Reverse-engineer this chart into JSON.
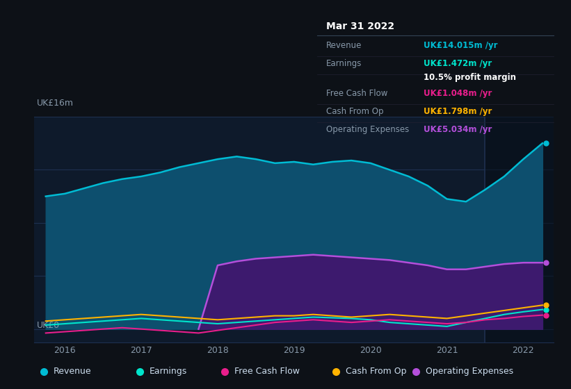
{
  "bg_color": "#0d1117",
  "plot_bg_color": "#0e1a2b",
  "grid_color": "#1e3050",
  "ylabel_text": "UK£16m",
  "y0_text": "UK£0",
  "x_ticks": [
    2016,
    2017,
    2018,
    2019,
    2020,
    2021,
    2022
  ],
  "series": {
    "Revenue": {
      "color": "#00bcd4",
      "fill_color": "#0d4f6e",
      "x": [
        2015.75,
        2016.0,
        2016.25,
        2016.5,
        2016.75,
        2017.0,
        2017.25,
        2017.5,
        2017.75,
        2018.0,
        2018.25,
        2018.5,
        2018.75,
        2019.0,
        2019.25,
        2019.5,
        2019.75,
        2020.0,
        2020.25,
        2020.5,
        2020.75,
        2021.0,
        2021.25,
        2021.5,
        2021.75,
        2022.0,
        2022.25
      ],
      "y": [
        10.0,
        10.2,
        10.6,
        11.0,
        11.3,
        11.5,
        11.8,
        12.2,
        12.5,
        12.8,
        13.0,
        12.8,
        12.5,
        12.6,
        12.4,
        12.6,
        12.7,
        12.5,
        12.0,
        11.5,
        10.8,
        9.8,
        9.6,
        10.5,
        11.5,
        12.8,
        14.0
      ]
    },
    "OperatingExpenses": {
      "color": "#b44fdb",
      "fill_color": "#3d1a6e",
      "x": [
        2017.75,
        2018.0,
        2018.25,
        2018.5,
        2018.75,
        2019.0,
        2019.25,
        2019.5,
        2019.75,
        2020.0,
        2020.25,
        2020.5,
        2020.75,
        2021.0,
        2021.25,
        2021.5,
        2021.75,
        2022.0,
        2022.25
      ],
      "y": [
        0.0,
        4.8,
        5.1,
        5.3,
        5.4,
        5.5,
        5.6,
        5.5,
        5.4,
        5.3,
        5.2,
        5.0,
        4.8,
        4.5,
        4.5,
        4.7,
        4.9,
        5.0,
        5.0
      ]
    },
    "Earnings": {
      "color": "#00e5cc",
      "x": [
        2015.75,
        2016.0,
        2016.25,
        2016.5,
        2016.75,
        2017.0,
        2017.25,
        2017.5,
        2017.75,
        2018.0,
        2018.25,
        2018.5,
        2018.75,
        2019.0,
        2019.25,
        2019.5,
        2019.75,
        2020.0,
        2020.25,
        2020.5,
        2020.75,
        2021.0,
        2021.25,
        2021.5,
        2021.75,
        2022.0,
        2022.25
      ],
      "y": [
        0.3,
        0.4,
        0.5,
        0.6,
        0.7,
        0.8,
        0.7,
        0.6,
        0.5,
        0.4,
        0.5,
        0.6,
        0.7,
        0.8,
        0.9,
        0.85,
        0.8,
        0.7,
        0.5,
        0.4,
        0.3,
        0.2,
        0.5,
        0.8,
        1.1,
        1.3,
        1.47
      ]
    },
    "FreeCashFlow": {
      "color": "#e91e8c",
      "x": [
        2015.75,
        2016.0,
        2016.25,
        2016.5,
        2016.75,
        2017.0,
        2017.25,
        2017.5,
        2017.75,
        2018.0,
        2018.25,
        2018.5,
        2018.75,
        2019.0,
        2019.25,
        2019.5,
        2019.75,
        2020.0,
        2020.25,
        2020.5,
        2020.75,
        2021.0,
        2021.25,
        2021.5,
        2021.75,
        2022.0,
        2022.25
      ],
      "y": [
        -0.3,
        -0.2,
        -0.1,
        0.0,
        0.1,
        0.0,
        -0.1,
        -0.2,
        -0.3,
        -0.1,
        0.1,
        0.3,
        0.5,
        0.6,
        0.7,
        0.6,
        0.5,
        0.6,
        0.7,
        0.6,
        0.5,
        0.4,
        0.5,
        0.7,
        0.8,
        0.95,
        1.05
      ]
    },
    "CashFromOp": {
      "color": "#ffb300",
      "x": [
        2015.75,
        2016.0,
        2016.25,
        2016.5,
        2016.75,
        2017.0,
        2017.25,
        2017.5,
        2017.75,
        2018.0,
        2018.25,
        2018.5,
        2018.75,
        2019.0,
        2019.25,
        2019.5,
        2019.75,
        2020.0,
        2020.25,
        2020.5,
        2020.75,
        2021.0,
        2021.25,
        2021.5,
        2021.75,
        2022.0,
        2022.25
      ],
      "y": [
        0.6,
        0.7,
        0.8,
        0.9,
        1.0,
        1.1,
        1.0,
        0.9,
        0.8,
        0.7,
        0.8,
        0.9,
        1.0,
        1.0,
        1.1,
        1.0,
        0.9,
        1.0,
        1.1,
        1.0,
        0.9,
        0.8,
        1.0,
        1.2,
        1.4,
        1.6,
        1.8
      ]
    }
  },
  "tooltip": {
    "title": "Mar 31 2022",
    "rows": [
      {
        "label": "Revenue",
        "value": "UK£14.015m /yr",
        "value_color": "#00bcd4",
        "label_color": "#8899aa"
      },
      {
        "label": "Earnings",
        "value": "UK£1.472m /yr",
        "value_color": "#00e5cc",
        "label_color": "#8899aa"
      },
      {
        "label": "",
        "value": "10.5% profit margin",
        "value_color": "#ffffff",
        "label_color": "#8899aa"
      },
      {
        "label": "Free Cash Flow",
        "value": "UK£1.048m /yr",
        "value_color": "#e91e8c",
        "label_color": "#8899aa"
      },
      {
        "label": "Cash From Op",
        "value": "UK£1.798m /yr",
        "value_color": "#ffb300",
        "label_color": "#8899aa"
      },
      {
        "label": "Operating Expenses",
        "value": "UK£5.034m /yr",
        "value_color": "#b44fdb",
        "label_color": "#8899aa"
      }
    ]
  },
  "legend": [
    {
      "label": "Revenue",
      "color": "#00bcd4"
    },
    {
      "label": "Earnings",
      "color": "#00e5cc"
    },
    {
      "label": "Free Cash Flow",
      "color": "#e91e8c"
    },
    {
      "label": "Cash From Op",
      "color": "#ffb300"
    },
    {
      "label": "Operating Expenses",
      "color": "#b44fdb"
    }
  ],
  "divider_x": 2021.5,
  "ylim": [
    -1,
    16
  ],
  "xlim": [
    2015.6,
    2022.4
  ]
}
